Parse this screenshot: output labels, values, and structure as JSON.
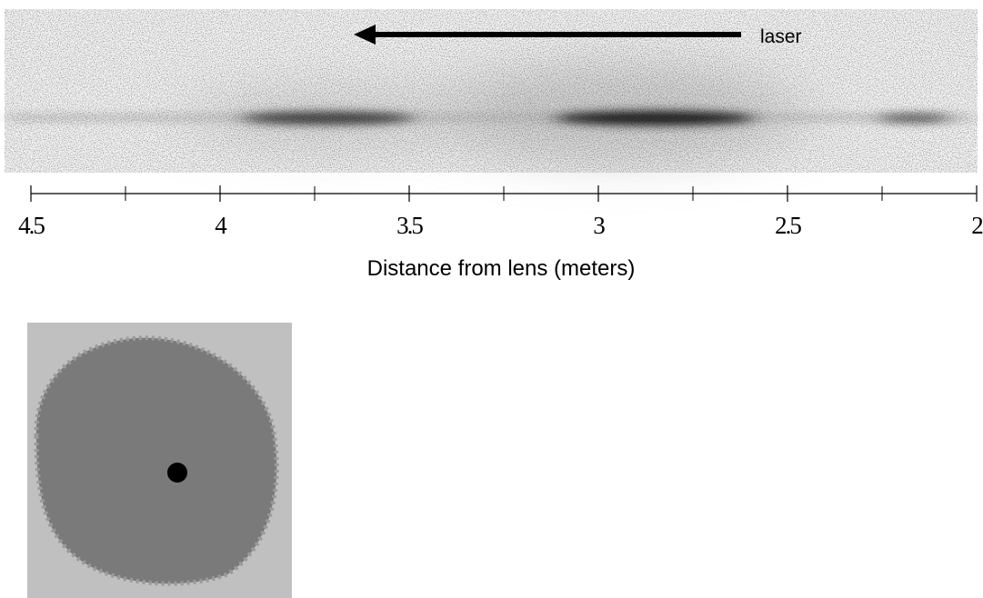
{
  "arrow_label": "laser",
  "axis": {
    "label": "Distance from lens (meters)",
    "lim": [
      4.5,
      2
    ],
    "ticks": [
      4.5,
      4,
      3.5,
      3,
      2.5,
      2
    ],
    "minor_ticks": [
      4.25,
      3.75,
      3.25,
      2.75,
      2.25
    ]
  }
}
